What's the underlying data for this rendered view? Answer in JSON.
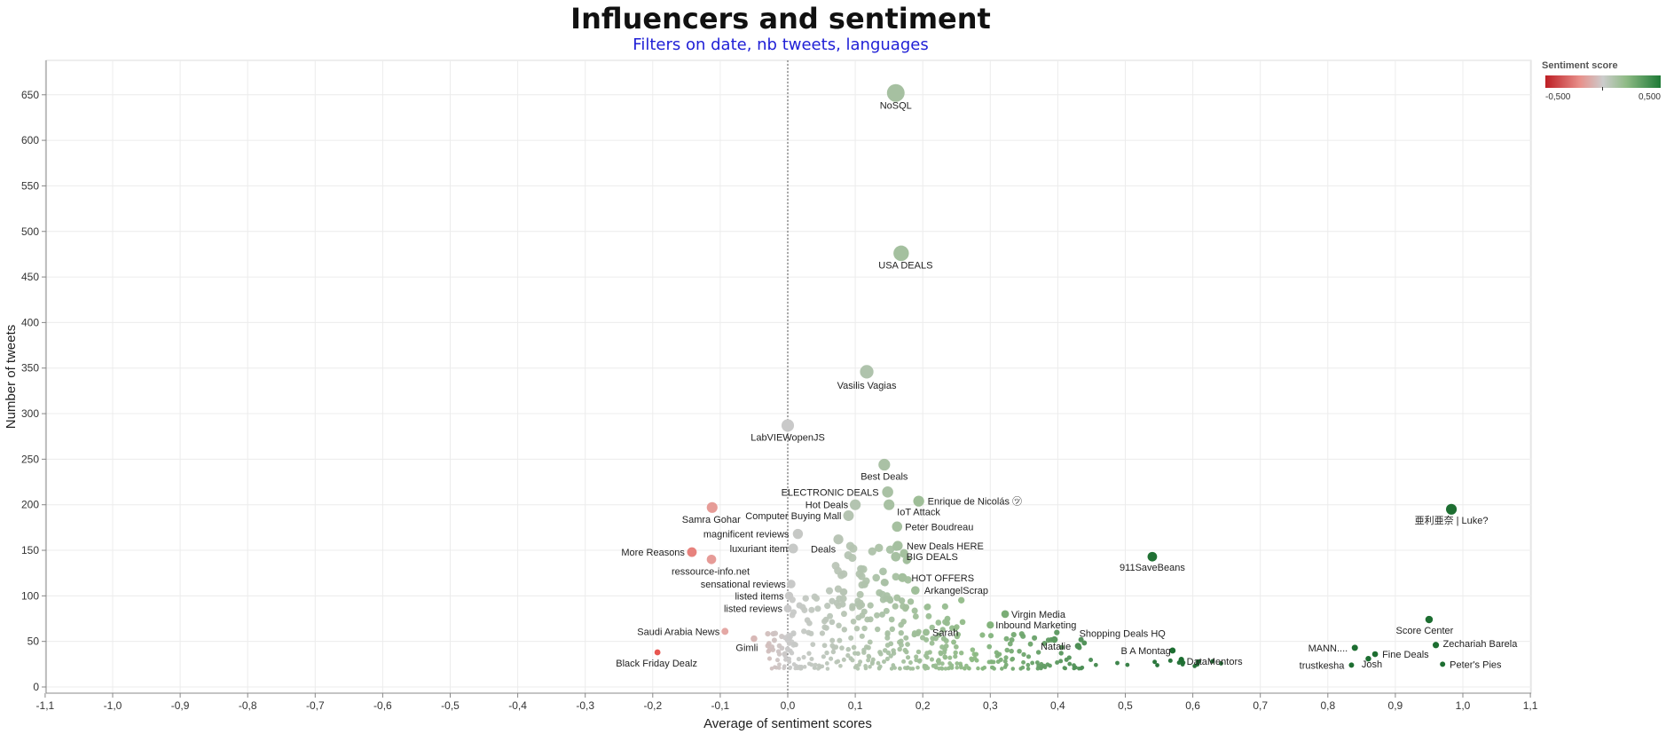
{
  "header": {
    "title": "Influencers and sentiment",
    "subtitle": "Filters on date, nb tweets, languages"
  },
  "legend": {
    "title": "Sentiment score",
    "min_label": "-0,500",
    "max_label": "0,500",
    "color_low": "#bd1e24",
    "color_mid": "#cccccc",
    "color_high": "#1e7a36"
  },
  "chart_data": {
    "type": "scatter",
    "title": "Influencers and sentiment",
    "subtitle": "Filters on date, nb tweets, languages",
    "xlabel": "Average of sentiment scores",
    "ylabel": "Number of tweets",
    "xlim": [
      -1.1,
      1.1
    ],
    "ylim": [
      0,
      690
    ],
    "x_ticks": [
      -1.1,
      -1.0,
      -0.9,
      -0.8,
      -0.7,
      -0.6,
      -0.5,
      -0.4,
      -0.3,
      -0.2,
      -0.1,
      0.0,
      0.1,
      0.2,
      0.3,
      0.4,
      0.5,
      0.6,
      0.7,
      0.8,
      0.9,
      1.0,
      1.1
    ],
    "x_tick_labels": [
      "-1,1",
      "-1,0",
      "-0,9",
      "-0,8",
      "-0,7",
      "-0,6",
      "-0,5",
      "-0,4",
      "-0,3",
      "-0,2",
      "-0,1",
      "0,0",
      "0,1",
      "0,2",
      "0,3",
      "0,4",
      "0,5",
      "0,6",
      "0,7",
      "0,8",
      "0,9",
      "1,0",
      "1,1"
    ],
    "y_ticks": [
      0,
      50,
      100,
      150,
      200,
      250,
      300,
      350,
      400,
      450,
      500,
      550,
      600,
      650
    ],
    "y_tick_labels": [
      "0",
      "50",
      "100",
      "150",
      "200",
      "250",
      "300",
      "350",
      "400",
      "450",
      "500",
      "550",
      "600",
      "650"
    ],
    "grid": true,
    "reference_line_x": 0,
    "legend_position": "top-right",
    "color_encoding": "sentiment score",
    "size_encoding": "number of tweets",
    "labeled_points": [
      {
        "label": "NoSQL",
        "x": 0.16,
        "y": 652
      },
      {
        "label": "USA DEALS",
        "x": 0.168,
        "y": 476
      },
      {
        "label": "Vasilis Vagias",
        "x": 0.117,
        "y": 346
      },
      {
        "label": "LabVIEWopenJS",
        "x": 0.0,
        "y": 287
      },
      {
        "label": "Best Deals",
        "x": 0.143,
        "y": 244
      },
      {
        "label": "ELECTRONIC DEALS",
        "x": 0.148,
        "y": 214
      },
      {
        "label": "Enrique de Nicolás ㋡",
        "x": 0.194,
        "y": 204
      },
      {
        "label": "Hot Deals",
        "x": 0.1,
        "y": 200
      },
      {
        "label": "IoT Attack",
        "x": 0.15,
        "y": 200
      },
      {
        "label": "Computer Buying Mall",
        "x": 0.09,
        "y": 188
      },
      {
        "label": "Peter Boudreau",
        "x": 0.162,
        "y": 176
      },
      {
        "label": "magnificent reviews",
        "x": 0.015,
        "y": 168
      },
      {
        "label": "Deals",
        "x": 0.075,
        "y": 162
      },
      {
        "label": "luxuriant item",
        "x": 0.008,
        "y": 152
      },
      {
        "label": "New Deals HERE",
        "x": 0.163,
        "y": 155
      },
      {
        "label": "BIG DEALS",
        "x": 0.16,
        "y": 143
      },
      {
        "label": "HOT OFFERS",
        "x": 0.17,
        "y": 120
      },
      {
        "label": "ArkangelScrap",
        "x": 0.189,
        "y": 106
      },
      {
        "label": "sensational reviews",
        "x": 0.005,
        "y": 113
      },
      {
        "label": "listed items",
        "x": 0.002,
        "y": 100
      },
      {
        "label": "listed reviews",
        "x": 0.0,
        "y": 86
      },
      {
        "label": "Samra Gohar",
        "x": -0.112,
        "y": 197
      },
      {
        "label": "More Reasons",
        "x": -0.142,
        "y": 148
      },
      {
        "label": "ressource-info.net",
        "x": -0.113,
        "y": 140
      },
      {
        "label": "Saudi Arabia News",
        "x": -0.093,
        "y": 61
      },
      {
        "label": "Gimli",
        "x": -0.05,
        "y": 53
      },
      {
        "label": "Black Friday Dealz",
        "x": -0.193,
        "y": 38
      },
      {
        "label": "Virgin Media",
        "x": 0.322,
        "y": 80
      },
      {
        "label": "Inbound Marketing",
        "x": 0.3,
        "y": 68
      },
      {
        "label": "Sarah",
        "x": 0.205,
        "y": 60
      },
      {
        "label": "Natalie",
        "x": 0.43,
        "y": 45
      },
      {
        "label": "Shopping Deals HQ",
        "x": 0.395,
        "y": 52
      },
      {
        "label": "B A Montag",
        "x": 0.57,
        "y": 40
      },
      {
        "label": "DataMentors",
        "x": 0.583,
        "y": 30
      },
      {
        "label": "911SaveBeans",
        "x": 0.54,
        "y": 143
      },
      {
        "label": "亜利亜奈 | Luke?",
        "x": 0.983,
        "y": 195
      },
      {
        "label": "Score Center",
        "x": 0.95,
        "y": 74
      },
      {
        "label": "MANN....",
        "x": 0.84,
        "y": 43
      },
      {
        "label": "Zechariah Barela",
        "x": 0.96,
        "y": 46
      },
      {
        "label": "Fine Deals",
        "x": 0.87,
        "y": 36
      },
      {
        "label": "trustkesha",
        "x": 0.835,
        "y": 24
      },
      {
        "label": "Josh",
        "x": 0.86,
        "y": 31
      },
      {
        "label": "Peter's Pies",
        "x": 0.97,
        "y": 25
      }
    ]
  }
}
